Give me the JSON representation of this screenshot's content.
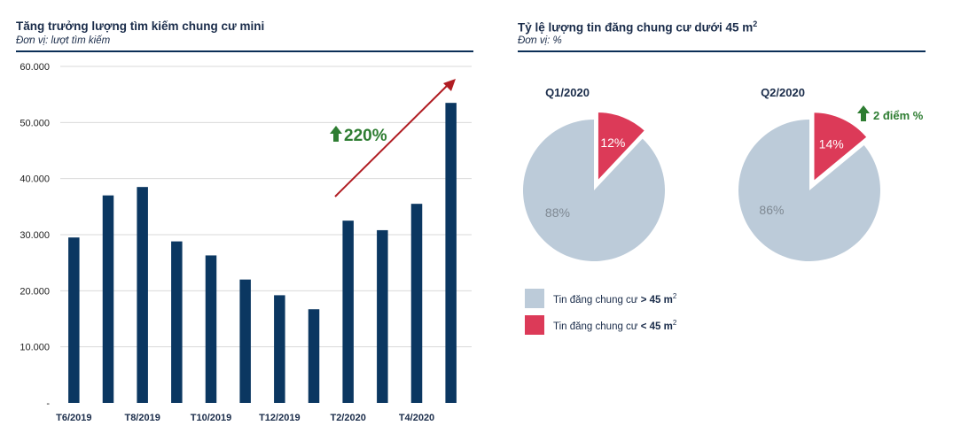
{
  "chart_data": [
    {
      "type": "bar",
      "title": "Tăng trưởng lượng tìm kiếm chung cư mini",
      "subtitle": "Đơn vị: lượt tìm kiếm",
      "categories": [
        "T6/2019",
        "T7/2019",
        "T8/2019",
        "T9/2019",
        "T10/2019",
        "T11/2019",
        "T12/2019",
        "T1/2020",
        "T2/2020",
        "T3/2020",
        "T4/2020",
        "T5/2020"
      ],
      "x_tick_labels": [
        "T6/2019",
        "",
        "T8/2019",
        "",
        "T10/2019",
        "",
        "T12/2019",
        "",
        "T2/2020",
        "",
        "T4/2020",
        ""
      ],
      "values": [
        29500,
        37000,
        38500,
        28800,
        26300,
        22000,
        19200,
        16700,
        32500,
        30800,
        35500,
        53500
      ],
      "ylim": [
        0,
        60000
      ],
      "yticks": [
        0,
        10000,
        20000,
        30000,
        40000,
        50000,
        60000
      ],
      "ytick_labels": [
        "-",
        "10.000",
        "20.000",
        "30.000",
        "40.000",
        "50.000",
        "60.000"
      ],
      "grid": true,
      "bar_color": "#0b3761",
      "annotation": {
        "text": "220%",
        "color": "#2e7d32",
        "arrow_color": "#b01c22"
      }
    },
    {
      "type": "pie",
      "title_main": "Tỷ lệ lượng tin đăng chung cư dưới 45 m",
      "title_sup": "2",
      "subtitle": "Đơn vị: %",
      "series_legend": [
        {
          "label_prefix": "Tin đăng chung cư ",
          "label_bold": "> 45 m",
          "label_sup": "2",
          "color": "#bccbd9"
        },
        {
          "label_prefix": "Tin đăng chung cư ",
          "label_bold": "< 45 m",
          "label_sup": "2",
          "color": "#dc3a58"
        }
      ],
      "pies": [
        {
          "name": "Q1/2020",
          "values": [
            88,
            12
          ],
          "labels": [
            "88%",
            "12%"
          ]
        },
        {
          "name": "Q2/2020",
          "values": [
            86,
            14
          ],
          "labels": [
            "86%",
            "14%"
          ]
        }
      ],
      "annotation": {
        "text": "2 điểm %",
        "color": "#2e7d32"
      }
    }
  ]
}
